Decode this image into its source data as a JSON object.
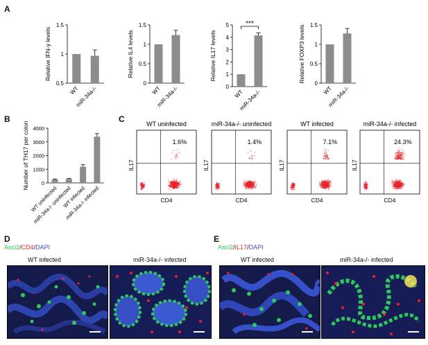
{
  "panels": {
    "A": "A",
    "B": "B",
    "C": "C",
    "D": "D",
    "E": "E"
  },
  "colors": {
    "bar": "#8c8c8c",
    "dot": "#e8222b",
    "green": "#2ec95b",
    "red": "#e8222b",
    "blue": "#3a4fd6"
  },
  "chart_data": [
    {
      "type": "bar",
      "ylabel": "Relative IFN-γ levels",
      "categories": [
        "WT",
        "miR-34a-/-"
      ],
      "values": [
        1.0,
        0.97
      ],
      "errors": [
        0,
        0.1
      ],
      "ylim": [
        0.5,
        1.5
      ],
      "yticks": [
        "0.5",
        "1",
        "1.5"
      ]
    },
    {
      "type": "bar",
      "ylabel": "Relative IL4 levels",
      "categories": [
        "WT",
        "miR-34a-/-"
      ],
      "values": [
        1.0,
        1.24
      ],
      "errors": [
        0,
        0.12
      ],
      "ylim": [
        0,
        1.5
      ],
      "yticks": [
        "0",
        "0.5",
        "1",
        "1.5"
      ]
    },
    {
      "type": "bar",
      "ylabel": "Relative IL17 levels",
      "categories": [
        "WT",
        "miR-34a-/-"
      ],
      "values": [
        1.0,
        4.15
      ],
      "errors": [
        0,
        0.2
      ],
      "ylim": [
        0,
        5
      ],
      "yticks": [
        "0",
        "1",
        "2",
        "3",
        "4",
        "5"
      ],
      "annotation": "***"
    },
    {
      "type": "bar",
      "ylabel": "Relative FOXP3 levels",
      "categories": [
        "WT",
        "miR-34a-/-"
      ],
      "values": [
        1.0,
        1.28
      ],
      "errors": [
        0,
        0.13
      ],
      "ylim": [
        0,
        1.5
      ],
      "yticks": [
        "0",
        "0.5",
        "1",
        "1.5"
      ]
    },
    {
      "type": "bar",
      "ylabel": "Number of TH17 per colon",
      "categories": [
        "WT uninfected",
        "miR-34a-/- uninfected",
        "WT infected",
        "miR-34a-/- infected"
      ],
      "values": [
        250,
        290,
        1180,
        3380
      ],
      "errors": [
        40,
        40,
        150,
        220
      ],
      "ylim": [
        0,
        4000
      ],
      "yticks": [
        "0",
        "1000",
        "2000",
        "3000",
        "4000"
      ]
    },
    {
      "type": "scatter",
      "title": "WT uninfected",
      "xlabel": "CD4",
      "ylabel": "IL17",
      "annotation": "1.6%",
      "density": 0.016
    },
    {
      "type": "scatter",
      "title": "miR-34a-/- uninfected",
      "xlabel": "CD4",
      "ylabel": "IL17",
      "annotation": "1.4%",
      "density": 0.014
    },
    {
      "type": "scatter",
      "title": "WT infected",
      "xlabel": "CD4",
      "ylabel": "IL17",
      "annotation": "7.1%",
      "density": 0.071
    },
    {
      "type": "scatter",
      "title": "miR-34a-/- infected",
      "xlabel": "CD4",
      "ylabel": "IL17",
      "annotation": "24.3%",
      "density": 0.243
    }
  ],
  "micro": {
    "D": {
      "legend": [
        "Ascl2",
        "/",
        "CD4",
        "/",
        "DAPI"
      ],
      "left_title": "WT infected",
      "right_title": "miR-34a-/- infected"
    },
    "E": {
      "legend": [
        "Ascl2",
        "/",
        "IL17",
        "/",
        "DAPI"
      ],
      "left_title": "WT infected",
      "right_title": "miR-34a-/- infected"
    }
  }
}
